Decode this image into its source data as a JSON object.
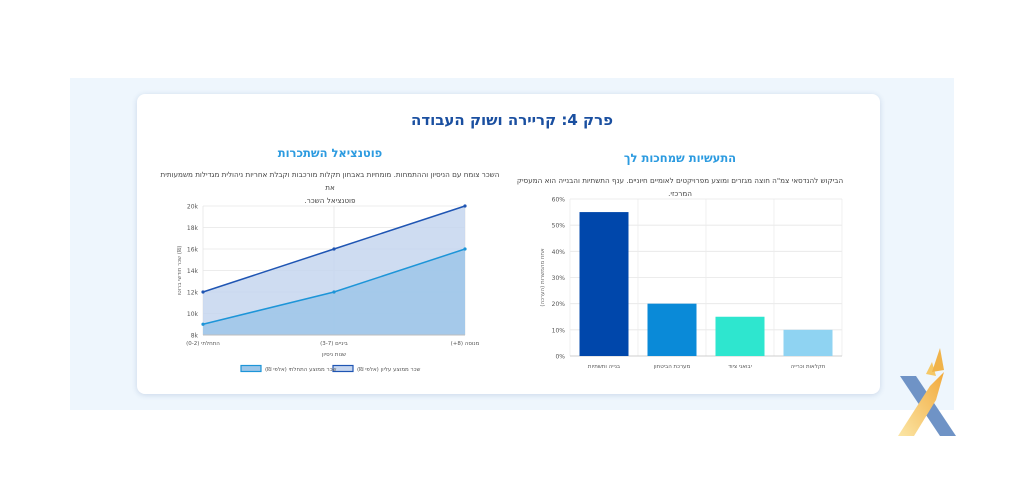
{
  "page": {
    "title": "פרק 4: קריירה ושוק העבודה"
  },
  "right_section": {
    "title": "התעשיות שמחכות לך",
    "description": "הביקוש להנדסאי צמ\"ה חוצה מגזרים ומוצע מפרויקטים לאומיים חיוניים. ענף התשתיות והבנייה הוא המעסיק המרכזי."
  },
  "left_section": {
    "title": "פוטנציאל השתכרות",
    "description_line1": "השכר צומח עם הניסיון וההתמחות. מומחיות באבחון תקלות מורכבות וקבלת אחריות ניהולית מגדילות משמעותית את",
    "description_line2": "פוטנציאל השכר."
  },
  "chart_data": [
    {
      "type": "bar",
      "categories": [
        "בנייה ותשתיות",
        "מערכת הביטחון",
        "יבואני ציוד",
        "חקלאות וכרייה"
      ],
      "values": [
        55,
        20,
        15,
        10
      ],
      "ylabel": "אחוז מהמשרות (הערכה)",
      "xlabel": "",
      "ylim": [
        0,
        60
      ],
      "y_ticks": [
        "0%",
        "10%",
        "20%",
        "30%",
        "40%",
        "50%",
        "60%"
      ],
      "bar_colors": [
        "#0047ab",
        "#0a8ad8",
        "#2ee6cf",
        "#8fd3f2"
      ],
      "grid": true,
      "legend": "none"
    },
    {
      "type": "area",
      "categories": [
        "התחלתי (0-2)",
        "ביניים (3-7)",
        "מנוסה (8+)"
      ],
      "series": [
        {
          "name": "שכר ממוצע עליון (אלפי ₪)",
          "values": [
            12,
            16,
            20
          ],
          "color": "#1f55b3",
          "fill": "#c6d6ef"
        },
        {
          "name": "שכר ממוצע התחלתי (אלפי ₪)",
          "values": [
            9,
            12,
            16
          ],
          "color": "#1d95d8",
          "fill": "#9dc6e9"
        }
      ],
      "xlabel": "שנות ניסיון",
      "ylabel": "שכר חודשי ברוטו (₪)",
      "ylim": [
        8,
        20
      ],
      "y_ticks": [
        "8k",
        "10k",
        "12k",
        "14k",
        "16k",
        "18k",
        "20k"
      ],
      "grid": true,
      "legend": "bottom"
    }
  ]
}
